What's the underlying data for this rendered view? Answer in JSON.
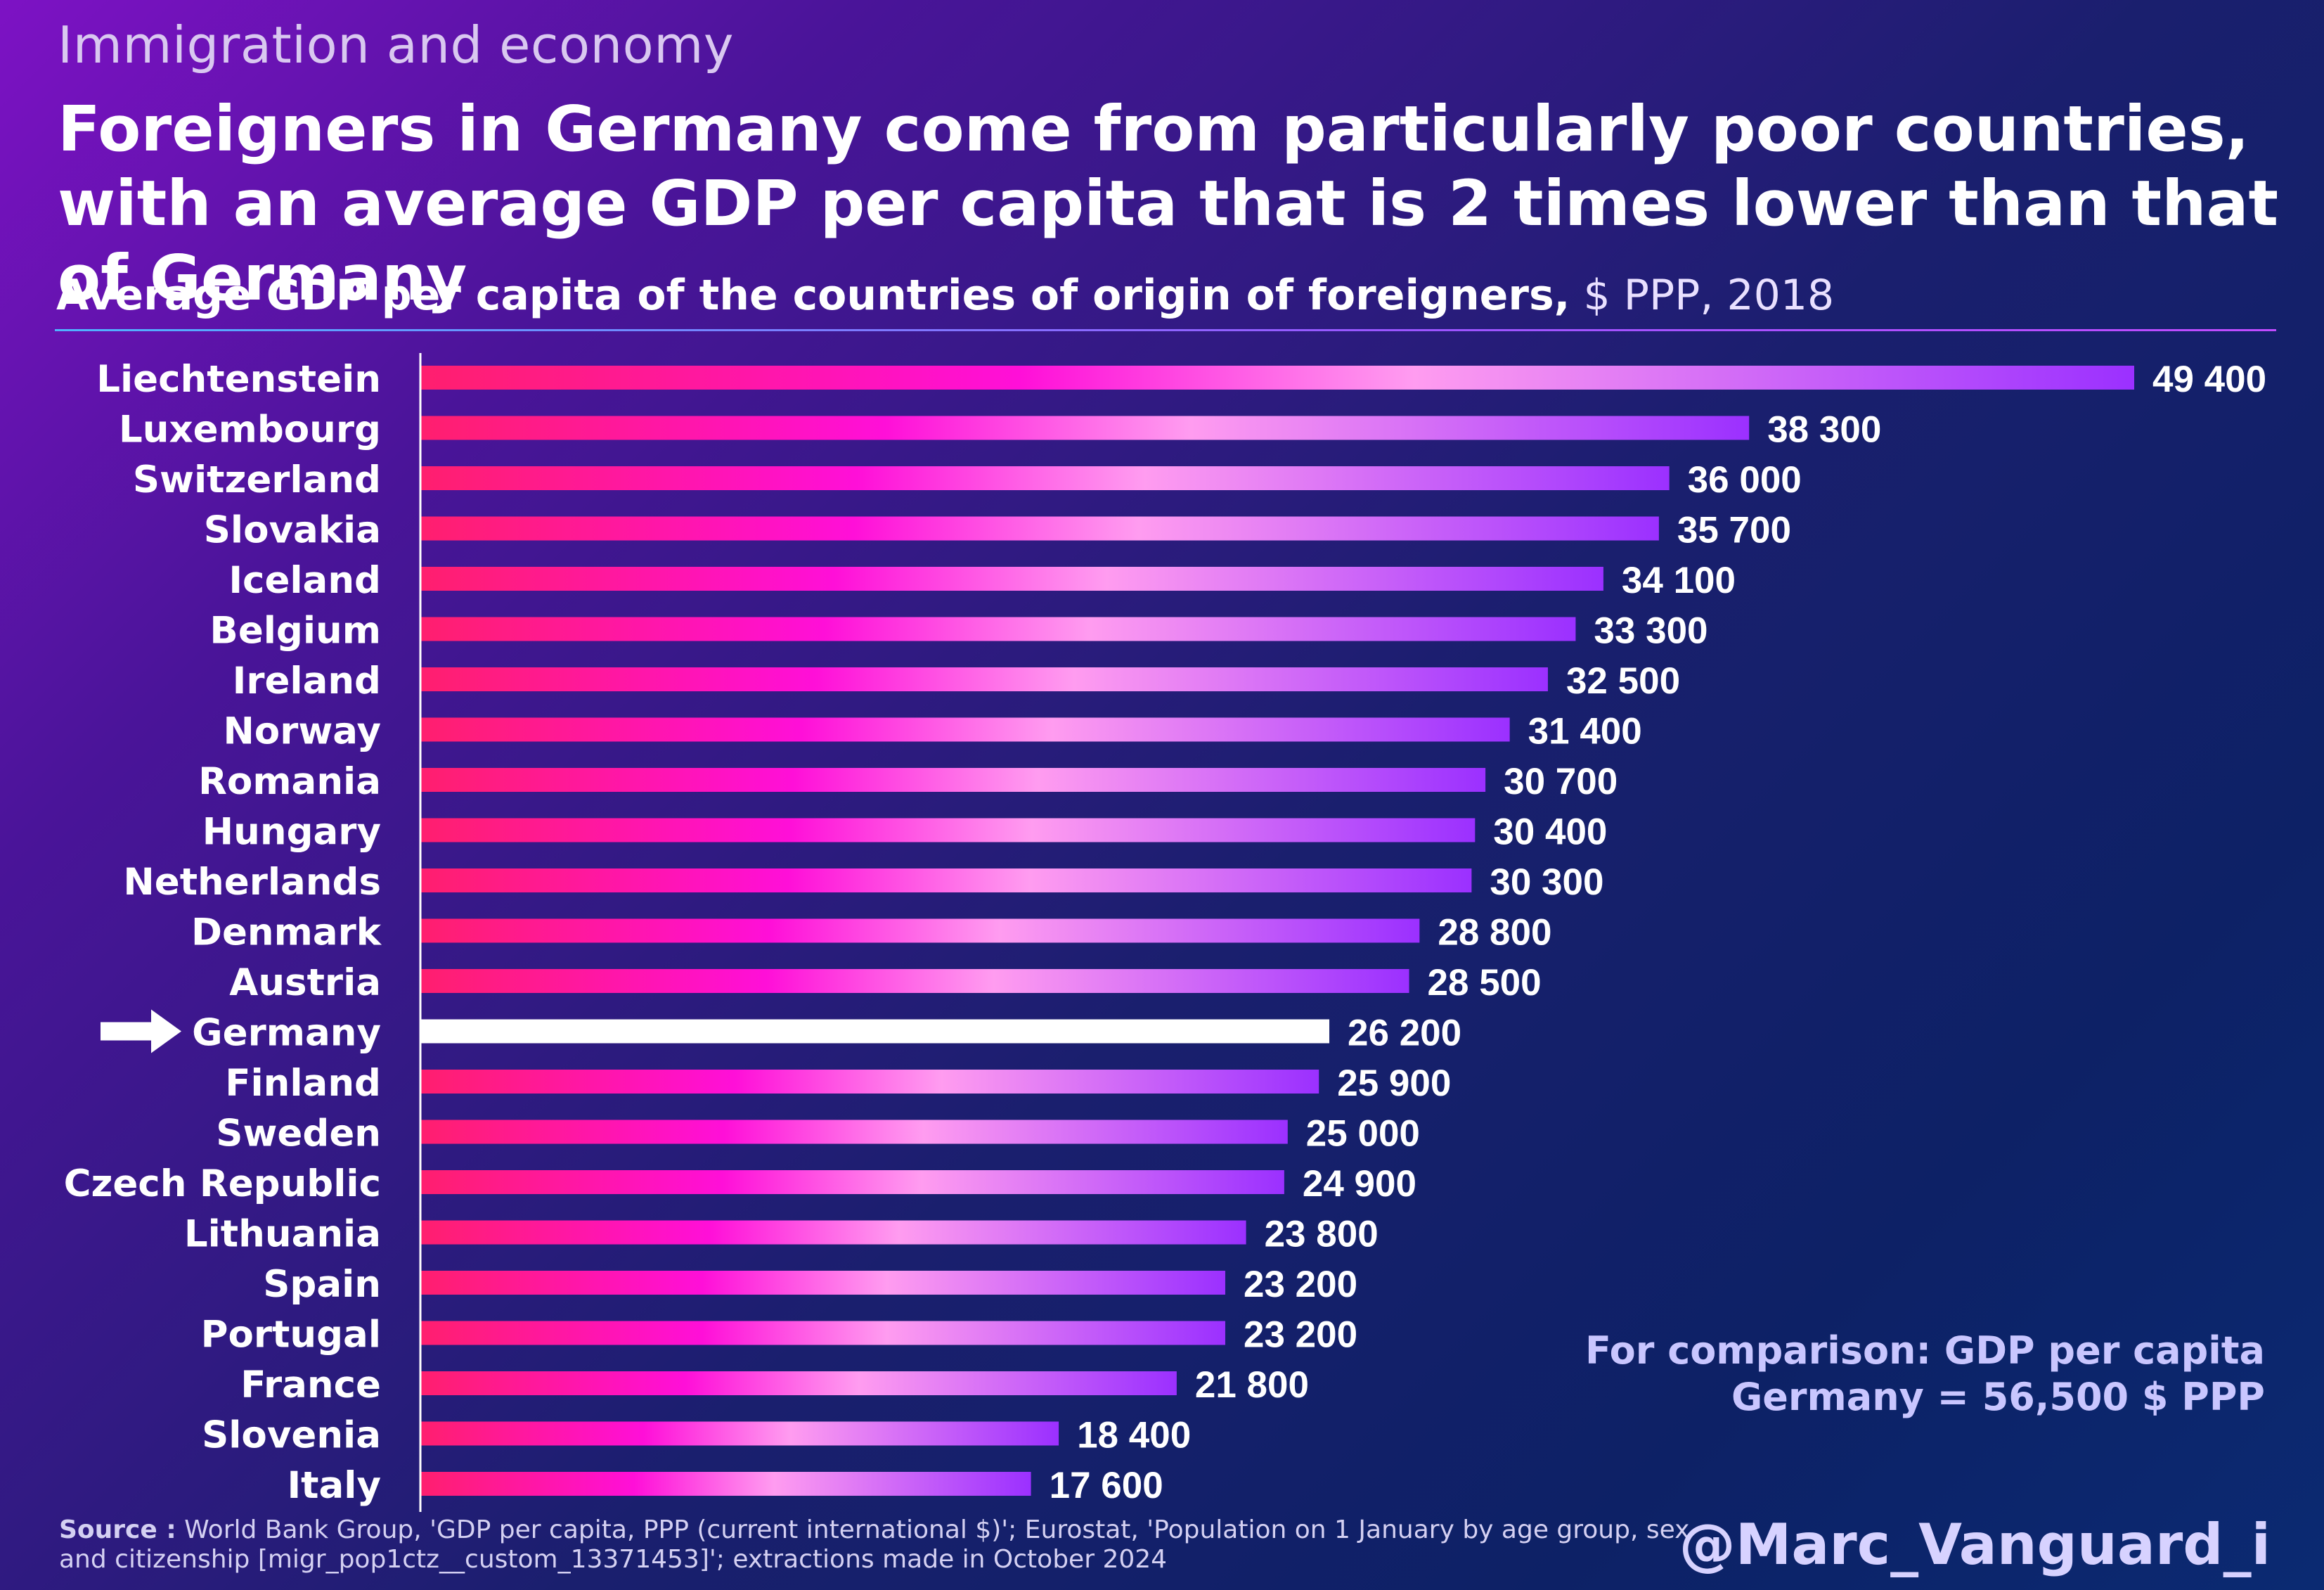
{
  "header": {
    "topic": "Immigration and economy",
    "title": "Foreigners in Germany come from particularly poor countries, with an average GDP per capita that is 2 times lower than that of Germany",
    "subtitle_bold": "Average GDP per capita of the countries of origin of foreigners,",
    "subtitle_unit": " $ PPP, 2018"
  },
  "comparison_note": "For comparison: GDP per capita Germany = 56,500 $ PPP",
  "source": {
    "label": "Source :",
    "text": " World Bank Group, 'GDP per capita, PPP (current international $)'; Eurostat, 'Population on 1 January by age group, sex and citizenship [migr_pop1ctz__custom_13371453]'; extractions made in October 2024"
  },
  "handle": "@Marc_Vanguard_i",
  "colors": {
    "bar_start": "#ff1f6e",
    "bar_mid": "#ff0fd8",
    "bar_light": "#ff9cf0",
    "bar_end": "#9b30ff",
    "highlight_bar": "#ffffff",
    "arrow": "#ffffff"
  },
  "highlight_icon": "right-arrow-icon",
  "chart_data": {
    "type": "bar",
    "orientation": "horizontal",
    "categories": [
      "Liechtenstein",
      "Luxembourg",
      "Switzerland",
      "Slovakia",
      "Iceland",
      "Belgium",
      "Ireland",
      "Norway",
      "Romania",
      "Hungary",
      "Netherlands",
      "Denmark",
      "Austria",
      "Germany",
      "Finland",
      "Sweden",
      "Czech Republic",
      "Lithuania",
      "Spain",
      "Portugal",
      "France",
      "Slovenia",
      "Italy"
    ],
    "values": [
      49400,
      38300,
      36000,
      35700,
      34100,
      33300,
      32500,
      31400,
      30700,
      30400,
      30300,
      28800,
      28500,
      26200,
      25900,
      25000,
      24900,
      23800,
      23200,
      23200,
      21800,
      18400,
      17600
    ],
    "value_labels": [
      "49 400",
      "38 300",
      "36 000",
      "35 700",
      "34 100",
      "33 300",
      "32 500",
      "31 400",
      "30 700",
      "30 400",
      "30 300",
      "28 800",
      "28 500",
      "26 200",
      "25 900",
      "25 000",
      "24 900",
      "23 800",
      "23 200",
      "23 200",
      "21 800",
      "18 400",
      "17 600"
    ],
    "highlight": "Germany",
    "xlim": [
      0,
      50000
    ],
    "grid": false,
    "legend": "none"
  }
}
